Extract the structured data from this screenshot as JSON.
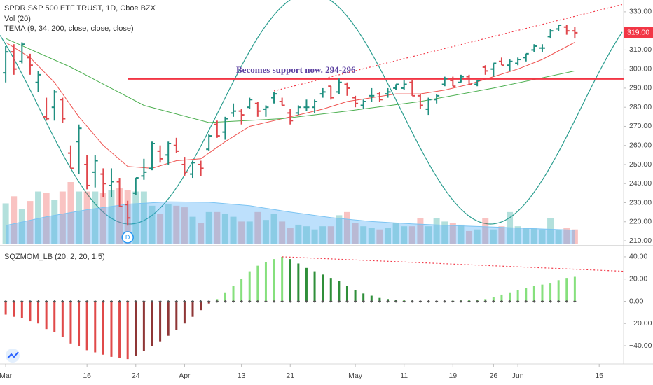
{
  "chart_data": [
    {
      "type": "ohlc",
      "title": "SPDR S&P 500 ETF TRUST, 1D, Cboe BZX",
      "xlim": [
        -0.7,
        76
      ],
      "ylim": [
        207.8,
        336.2
      ],
      "yticks": [
        {
          "value": 330,
          "label": "330.00"
        },
        {
          "value": 320,
          "label": "320.00"
        },
        {
          "value": 310,
          "label": "310.00"
        },
        {
          "value": 300,
          "label": "300.00"
        },
        {
          "value": 290,
          "label": "290.00"
        },
        {
          "value": 280,
          "label": "280.00"
        },
        {
          "value": 270,
          "label": "270.00"
        },
        {
          "value": 260,
          "label": "260.00"
        },
        {
          "value": 250,
          "label": "250.00"
        },
        {
          "value": 240,
          "label": "240.00"
        },
        {
          "value": 230,
          "label": "230.00"
        },
        {
          "value": 220,
          "label": "220.00"
        },
        {
          "value": 210,
          "label": "210.00"
        }
      ],
      "up_color": "#1f8f80",
      "down_color": "#e0474c",
      "open": [
        298,
        309,
        304,
        306,
        293,
        275,
        280,
        284,
        256,
        262,
        250,
        246,
        245,
        239,
        241,
        229,
        235,
        244,
        248,
        257,
        255,
        260,
        250,
        245,
        250,
        258,
        271,
        267,
        277,
        278,
        280,
        282,
        279,
        285,
        283,
        277,
        277,
        280,
        280,
        287,
        291,
        288,
        292,
        285,
        281,
        286,
        287,
        287,
        290,
        290,
        293,
        286,
        279,
        284,
        292,
        294,
        293,
        296,
        292,
        301,
        300,
        304,
        302,
        303,
        306,
        310,
        311,
        317,
        321,
        322,
        320
      ],
      "high": [
        312,
        313,
        314,
        308,
        299,
        285,
        289,
        285,
        260,
        271,
        255,
        255,
        248,
        248,
        243,
        231,
        243,
        253,
        262,
        260,
        262,
        264,
        254,
        252,
        252,
        266,
        273,
        275,
        282,
        279,
        285,
        283,
        281,
        288,
        285,
        279,
        281,
        284,
        284,
        290,
        291,
        295,
        293,
        286,
        284,
        290,
        288,
        290,
        292,
        294,
        294,
        287,
        285,
        287,
        296,
        296,
        297,
        297,
        294,
        302,
        303,
        306,
        305,
        306,
        308,
        313,
        313,
        321,
        323,
        323,
        322
      ],
      "low": [
        293,
        297,
        303,
        297,
        288,
        273,
        273,
        272,
        248,
        245,
        237,
        238,
        233,
        233,
        228,
        218,
        234,
        242,
        247,
        251,
        250,
        256,
        244,
        243,
        244,
        257,
        264,
        263,
        275,
        271,
        279,
        275,
        275,
        282,
        281,
        271,
        276,
        278,
        277,
        285,
        284,
        287,
        286,
        280,
        279,
        283,
        283,
        285,
        289,
        289,
        286,
        279,
        276,
        282,
        291,
        291,
        293,
        292,
        291,
        297,
        296,
        302,
        299,
        302,
        304,
        309,
        309,
        316,
        320,
        318,
        316
      ],
      "close": [
        309,
        300,
        313,
        302,
        297,
        274,
        288,
        274,
        248,
        269,
        239,
        252,
        240,
        241,
        228,
        222,
        243,
        246,
        261,
        253,
        261,
        257,
        246,
        251,
        248,
        265,
        265,
        274,
        278,
        276,
        284,
        278,
        280,
        287,
        281,
        273,
        280,
        280,
        283,
        288,
        285,
        293,
        290,
        282,
        283,
        286,
        284,
        288,
        292,
        292,
        286,
        281,
        284,
        286,
        295,
        291,
        296,
        292,
        294,
        299,
        303,
        302,
        304,
        305,
        308,
        312,
        311,
        320,
        323,
        320,
        319
      ],
      "last_price": {
        "value": 319,
        "label": "319.00",
        "color": "#f23645"
      },
      "volume": {
        "name": "Vol (20)",
        "up_color": "rgba(38,166,154,0.35)",
        "down_color": "rgba(239,83,80,0.35)",
        "ma_color": "#7cc4f2",
        "values": [
          255,
          300,
          220,
          270,
          330,
          320,
          275,
          330,
          390,
          330,
          330,
          330,
          320,
          340,
          350,
          340,
          330,
          330,
          240,
          190,
          250,
          240,
          230,
          170,
          130,
          200,
          200,
          190,
          170,
          140,
          140,
          200,
          150,
          190,
          140,
          100,
          120,
          110,
          90,
          110,
          110,
          180,
          200,
          130,
          110,
          100,
          90,
          100,
          130,
          110,
          110,
          160,
          110,
          160,
          140,
          130,
          120,
          80,
          90,
          160,
          90,
          110,
          200,
          110,
          100,
          100,
          90,
          160,
          90,
          100,
          90
        ],
        "ma": {
          "x": [
            0,
            5,
            10,
            15,
            20,
            25,
            30,
            35,
            40,
            45,
            50,
            55,
            60,
            65,
            70
          ],
          "values": [
            115,
            170,
            215,
            250,
            265,
            262,
            240,
            200,
            165,
            140,
            125,
            115,
            105,
            95,
            85
          ]
        }
      },
      "tema": {
        "name": "TEMA (9, 34, 200, close, close, close)",
        "lines": [
          {
            "color": "#ef5350",
            "x": [
              0,
              3,
              6,
              9,
              12,
              15,
              18,
              21,
              24,
              27,
              30,
              33,
              36,
              39,
              42,
              45,
              48,
              51,
              54,
              57,
              60,
              63,
              66,
              70
            ],
            "values": [
              314,
              306,
              293,
              275,
              260,
              249,
              248,
              252,
              253,
              262,
              270,
              273,
              276,
              279,
              283,
              285,
              287,
              287,
              289,
              292,
              296,
              300,
              305,
              314
            ]
          },
          {
            "color": "#4caf50",
            "x": [
              0,
              8,
              17,
              25,
              34,
              42,
              51,
              60,
              70
            ],
            "values": [
              316,
              301,
              281,
              272,
              274,
              278,
              283,
              290,
              299
            ]
          }
        ]
      },
      "level": {
        "value": 294.8,
        "color": "#f23645",
        "label": "Becomes support now. 294-296"
      },
      "trendline": {
        "color": "#f23645",
        "x": [
          33,
          76
        ],
        "values": [
          288.5,
          334
        ]
      },
      "event": {
        "x": 15,
        "label": "D"
      }
    },
    {
      "type": "histogram",
      "title": "SQZMOM_LB (20, 2, 20, 1.5)",
      "xlim": [
        -0.7,
        76
      ],
      "ylim": [
        -55.1,
        49.4
      ],
      "yticks": [
        {
          "value": 40,
          "label": "40.00"
        },
        {
          "value": 20,
          "label": "20.00"
        },
        {
          "value": 0,
          "label": "0.00"
        },
        {
          "value": -20,
          "label": "−20.00"
        },
        {
          "value": -40,
          "label": "−40.00"
        }
      ],
      "xticks": [
        {
          "value": 0,
          "label": "Mar"
        },
        {
          "value": 10,
          "label": "16"
        },
        {
          "value": 16,
          "label": "24"
        },
        {
          "value": 22,
          "label": "Apr"
        },
        {
          "value": 29,
          "label": "13"
        },
        {
          "value": 35,
          "label": "21"
        },
        {
          "value": 43,
          "label": "May"
        },
        {
          "value": 49,
          "label": "11"
        },
        {
          "value": 55,
          "label": "19"
        },
        {
          "value": 60,
          "label": "26"
        },
        {
          "value": 63,
          "label": "Jun"
        },
        {
          "value": 73,
          "label": "15"
        }
      ],
      "colors": {
        "rise_pos": "#86e07d",
        "fall_pos": "#2f8f3a",
        "fall_neg": "#e04a4a",
        "rise_neg": "#8f3636"
      },
      "values": [
        -12,
        -14,
        -15,
        -18,
        -20,
        -25,
        -28,
        -32,
        -38,
        -40,
        -44,
        -46,
        -48,
        -50,
        -51,
        -52,
        -49,
        -45,
        -40,
        -36,
        -31,
        -26,
        -20,
        -14,
        -8,
        -2,
        2,
        8,
        14,
        20,
        27,
        32,
        35,
        38,
        40,
        38,
        34,
        30,
        27,
        24,
        21,
        18,
        14,
        10,
        7,
        5,
        3,
        2,
        1,
        1,
        0.5,
        0.3,
        0.2,
        0.2,
        0.3,
        0.5,
        0.8,
        1,
        1.2,
        2,
        4,
        6,
        8,
        10,
        12,
        14,
        15,
        16,
        19,
        21,
        22
      ],
      "trendline": {
        "color": "#f23645",
        "x": [
          34,
          76
        ],
        "values": [
          40,
          27
        ]
      }
    }
  ]
}
